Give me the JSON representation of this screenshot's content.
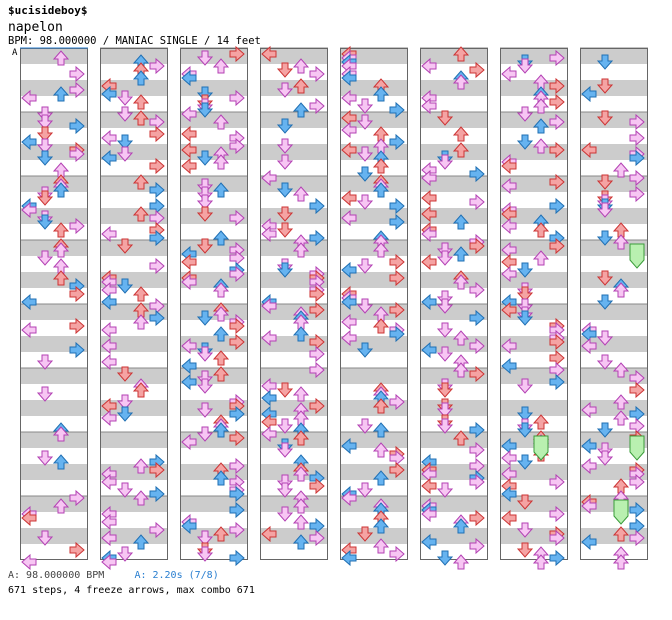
{
  "header": {
    "artist": "$ucisideboy$",
    "title": "napelon",
    "info": "BPM: 98.000000 / MANIAC SINGLE / 14 feet",
    "section_marker": "A"
  },
  "footer": {
    "bpm_label": "A: 98.000000 BPM",
    "stop_label": "A: 2.20s (7/8)",
    "summary": "671 steps, 4 freeze arrows, max combo 671"
  },
  "colors": {
    "stripe": "#cccccc",
    "border": "#666666",
    "arrow_red": "#f5a3a3",
    "arrow_red_stroke": "#cc3333",
    "arrow_pink": "#f7c6f3",
    "arrow_pink_stroke": "#b340b3",
    "arrow_blue": "#66b3f0",
    "arrow_blue_stroke": "#1f6fb3",
    "freeze": "#b9f0b0",
    "freeze_stroke": "#3a9c3a",
    "marker_blue": "#2a7fd0"
  },
  "chart": {
    "panels": 8,
    "measures_per_panel": 8,
    "lanes": [
      "left",
      "down",
      "up",
      "right"
    ],
    "freeze_arrows": [
      {
        "panel": 6,
        "measure": 6,
        "lane": "up"
      },
      {
        "panel": 7,
        "measure": 3,
        "lane": "right"
      },
      {
        "panel": 7,
        "measure": 6,
        "lane": "right"
      },
      {
        "panel": 7,
        "measure": 7,
        "lane": "up"
      }
    ]
  }
}
